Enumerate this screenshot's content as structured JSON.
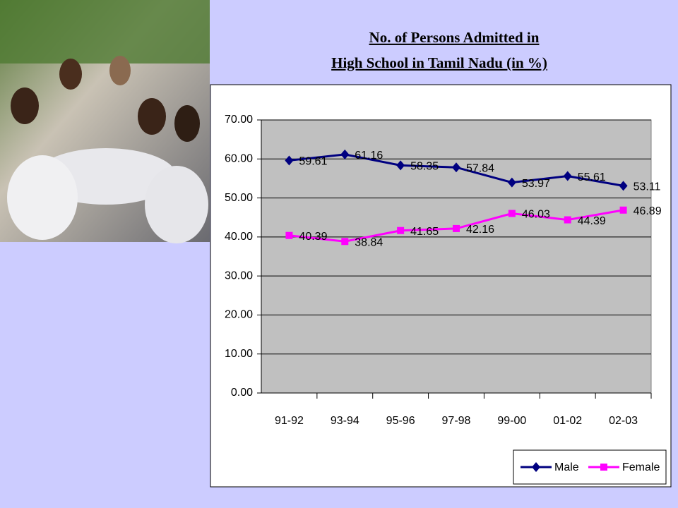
{
  "chart_data": {
    "type": "line",
    "title": [
      "No. of Persons Admitted in",
      "High School in Tamil Nadu (in %)"
    ],
    "categories": [
      "91-92",
      "93-94",
      "95-96",
      "97-98",
      "99-00",
      "01-02",
      "02-03"
    ],
    "series": [
      {
        "name": "Male",
        "color": "#000080",
        "marker": "diamond",
        "values": [
          59.61,
          61.16,
          58.35,
          57.84,
          53.97,
          55.61,
          53.11
        ]
      },
      {
        "name": "Female",
        "color": "#ff00ff",
        "marker": "square",
        "values": [
          40.39,
          38.84,
          41.65,
          42.16,
          46.03,
          44.39,
          46.89
        ]
      }
    ],
    "ylim": [
      0,
      70
    ],
    "yticks": [
      {
        "value": 0,
        "label": "0.00"
      },
      {
        "value": 10,
        "label": "10.00"
      },
      {
        "value": 20,
        "label": "20.00"
      },
      {
        "value": 30,
        "label": "30.00"
      },
      {
        "value": 40,
        "label": "40.00"
      },
      {
        "value": 50,
        "label": "50.00"
      },
      {
        "value": 60,
        "label": "60.00"
      },
      {
        "value": 70,
        "label": "70.00"
      }
    ],
    "grid": true,
    "legend": "lower right"
  }
}
